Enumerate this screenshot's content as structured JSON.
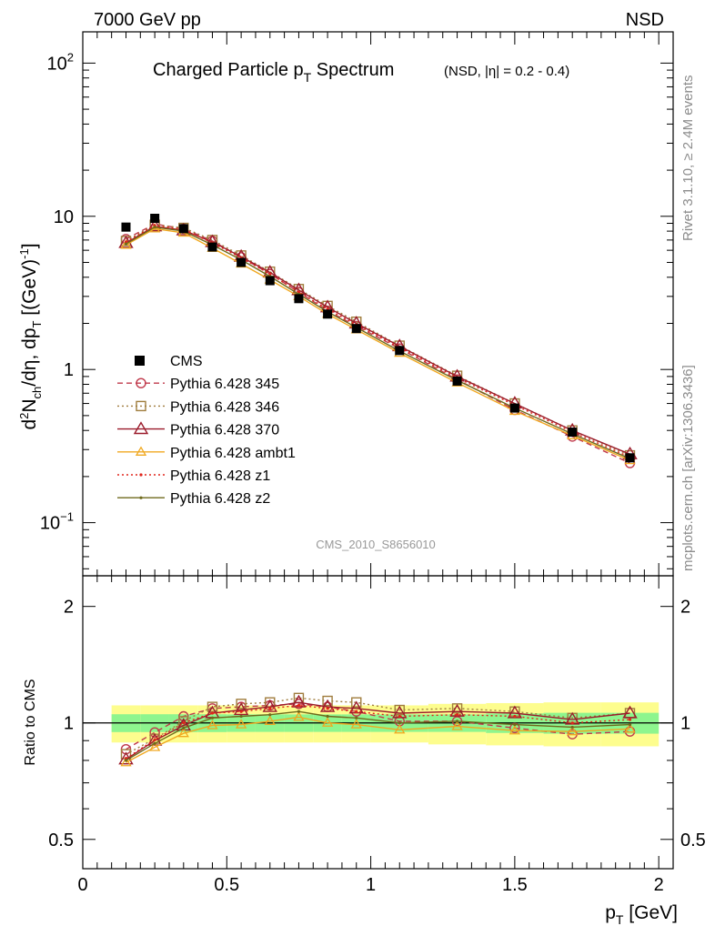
{
  "header": {
    "left": "7000 GeV pp",
    "right": "NSD"
  },
  "title": {
    "main_pre": "Charged Particle p",
    "main_sub": "T",
    "main_post": " Spectrum",
    "small": "(NSD, |η| = 0.2 - 0.4)"
  },
  "analysis_id": "CMS_2010_S8656010",
  "side_text": {
    "rivet": "Rivet 3.1.10, ≥ 2.4M events",
    "mcplots": "mcplots.cern.ch [arXiv:1306.3436]"
  },
  "y_label_main": "d²N_ch/dη, dp_T [(GeV)⁻¹]",
  "x_label": "p_T [GeV]",
  "ratio_ylabel": "Ratio to CMS",
  "colors": {
    "cms": "#000000",
    "p345": "#c0394b",
    "p346": "#a07d3e",
    "p370": "#9b1b2b",
    "ambt1": "#f0a820",
    "z1": "#e0251b",
    "z2": "#6f6a1c",
    "band_inner": "#8ef58e",
    "band_outer": "#fdfd8e"
  },
  "chart_data": [
    {
      "type": "scatter",
      "panel": "main",
      "x_scale": "linear",
      "y_scale": "log",
      "xlim": [
        0,
        2.05
      ],
      "ylim": [
        0.045,
        160
      ],
      "y_ticks": [
        {
          "value": 0.1,
          "label": "10",
          "exp": "−1"
        },
        {
          "value": 1,
          "label": "1",
          "exp": ""
        },
        {
          "value": 10,
          "label": "10",
          "exp": ""
        },
        {
          "value": 100,
          "label": "10",
          "exp": "2"
        }
      ],
      "x": [
        0.15,
        0.25,
        0.35,
        0.45,
        0.55,
        0.65,
        0.75,
        0.85,
        0.95,
        1.1,
        1.3,
        1.5,
        1.7,
        1.9
      ],
      "legend_position": "middle-left",
      "series": [
        {
          "name": "CMS",
          "key": "cms",
          "style": "data",
          "values": [
            8.5,
            9.7,
            8.3,
            6.3,
            5.0,
            3.8,
            2.9,
            2.3,
            1.85,
            1.33,
            0.84,
            0.56,
            0.39,
            0.265
          ]
        },
        {
          "name": "Pythia 6.428 345",
          "key": "p345",
          "style": "dashed",
          "marker": "circle",
          "values": [
            7.1,
            8.9,
            8.3,
            6.9,
            5.4,
            4.2,
            3.2,
            2.42,
            1.92,
            1.37,
            0.86,
            0.545,
            0.365,
            0.245
          ]
        },
        {
          "name": "Pythia 6.428 346",
          "key": "p346",
          "style": "dotted",
          "marker": "square",
          "values": [
            6.9,
            8.8,
            8.4,
            7.0,
            5.55,
            4.35,
            3.35,
            2.6,
            2.05,
            1.43,
            0.91,
            0.6,
            0.4,
            0.275
          ]
        },
        {
          "name": "Pythia 6.428 370",
          "key": "p370",
          "style": "solid",
          "marker": "triangle",
          "values": [
            6.7,
            8.6,
            8.1,
            6.8,
            5.45,
            4.3,
            3.3,
            2.55,
            2.0,
            1.42,
            0.9,
            0.6,
            0.4,
            0.28
          ]
        },
        {
          "name": "Pythia 6.428 ambt1",
          "key": "ambt1",
          "style": "solid",
          "marker": "triangle-small",
          "values": [
            6.5,
            8.3,
            7.8,
            6.2,
            4.9,
            3.85,
            3.0,
            2.3,
            1.82,
            1.28,
            0.82,
            0.535,
            0.37,
            0.255
          ]
        },
        {
          "name": "Pythia 6.428 z1",
          "key": "z1",
          "style": "dotted",
          "marker": "dot",
          "values": [
            6.8,
            8.7,
            8.2,
            6.7,
            5.35,
            4.2,
            3.2,
            2.48,
            1.96,
            1.39,
            0.88,
            0.585,
            0.39,
            0.268
          ]
        },
        {
          "name": "Pythia 6.428 z2",
          "key": "z2",
          "style": "solid",
          "marker": "dot",
          "values": [
            6.6,
            8.5,
            8.0,
            6.5,
            5.2,
            4.05,
            3.1,
            2.38,
            1.88,
            1.32,
            0.85,
            0.56,
            0.38,
            0.262
          ]
        }
      ]
    },
    {
      "type": "line",
      "panel": "ratio",
      "x_scale": "linear",
      "y_scale": "log",
      "xlim": [
        0,
        2.05
      ],
      "ylim": [
        0.42,
        2.4
      ],
      "y_ticks": [
        {
          "value": 0.5,
          "label": "0.5"
        },
        {
          "value": 1,
          "label": "1"
        },
        {
          "value": 2,
          "label": "2"
        }
      ],
      "x_ticks": [
        {
          "value": 0,
          "label": "0"
        },
        {
          "value": 0.5,
          "label": "0.5"
        },
        {
          "value": 1,
          "label": "1"
        },
        {
          "value": 1.5,
          "label": "1.5"
        },
        {
          "value": 2,
          "label": "2"
        }
      ],
      "bins": [
        [
          0.1,
          0.2
        ],
        [
          0.2,
          0.3
        ],
        [
          0.3,
          0.4
        ],
        [
          0.4,
          0.5
        ],
        [
          0.5,
          0.6
        ],
        [
          0.6,
          0.7
        ],
        [
          0.7,
          0.8
        ],
        [
          0.8,
          0.9
        ],
        [
          0.9,
          1.0
        ],
        [
          1.0,
          1.2
        ],
        [
          1.2,
          1.4
        ],
        [
          1.4,
          1.6
        ],
        [
          1.6,
          1.8
        ],
        [
          1.8,
          2.0
        ]
      ],
      "band_inner": [
        0.053,
        0.053,
        0.053,
        0.053,
        0.052,
        0.052,
        0.052,
        0.052,
        0.052,
        0.052,
        0.052,
        0.058,
        0.062,
        0.062
      ],
      "band_outer": [
        0.11,
        0.11,
        0.11,
        0.11,
        0.11,
        0.11,
        0.11,
        0.11,
        0.11,
        0.11,
        0.12,
        0.125,
        0.13,
        0.13
      ],
      "x": [
        0.15,
        0.25,
        0.35,
        0.45,
        0.55,
        0.65,
        0.75,
        0.85,
        0.95,
        1.1,
        1.3,
        1.5,
        1.7,
        1.9
      ],
      "series": [
        {
          "name": "Pythia 6.428 345",
          "key": "p345",
          "style": "dashed",
          "marker": "circle",
          "values": [
            0.855,
            0.945,
            1.04,
            1.09,
            1.1,
            1.11,
            1.12,
            1.1,
            1.07,
            1.01,
            1.01,
            0.97,
            0.935,
            0.95
          ]
        },
        {
          "name": "Pythia 6.428 346",
          "key": "p346",
          "style": "dotted",
          "marker": "square",
          "values": [
            0.83,
            0.91,
            1.01,
            1.1,
            1.12,
            1.13,
            1.16,
            1.14,
            1.13,
            1.08,
            1.09,
            1.07,
            1.03,
            1.06
          ]
        },
        {
          "name": "Pythia 6.428 370",
          "key": "p370",
          "style": "solid",
          "marker": "triangle",
          "values": [
            0.805,
            0.9,
            0.985,
            1.06,
            1.08,
            1.1,
            1.13,
            1.1,
            1.09,
            1.06,
            1.07,
            1.06,
            1.02,
            1.06
          ]
        },
        {
          "name": "Pythia 6.428 ambt1",
          "key": "ambt1",
          "style": "solid",
          "marker": "triangle-small",
          "values": [
            0.79,
            0.865,
            0.94,
            0.985,
            0.99,
            1.01,
            1.035,
            1.0,
            0.99,
            0.96,
            0.98,
            0.955,
            0.95,
            0.965
          ]
        },
        {
          "name": "Pythia 6.428 z1",
          "key": "z1",
          "style": "dotted",
          "marker": "dot",
          "values": [
            0.81,
            0.905,
            1.0,
            1.06,
            1.07,
            1.09,
            1.11,
            1.09,
            1.07,
            1.04,
            1.05,
            1.04,
            1.0,
            1.02
          ]
        },
        {
          "name": "Pythia 6.428 z2",
          "key": "z2",
          "style": "solid",
          "marker": "dot",
          "values": [
            0.8,
            0.885,
            0.97,
            1.03,
            1.04,
            1.05,
            1.07,
            1.04,
            1.03,
            1.0,
            1.01,
            0.99,
            0.975,
            0.99
          ]
        }
      ]
    }
  ]
}
